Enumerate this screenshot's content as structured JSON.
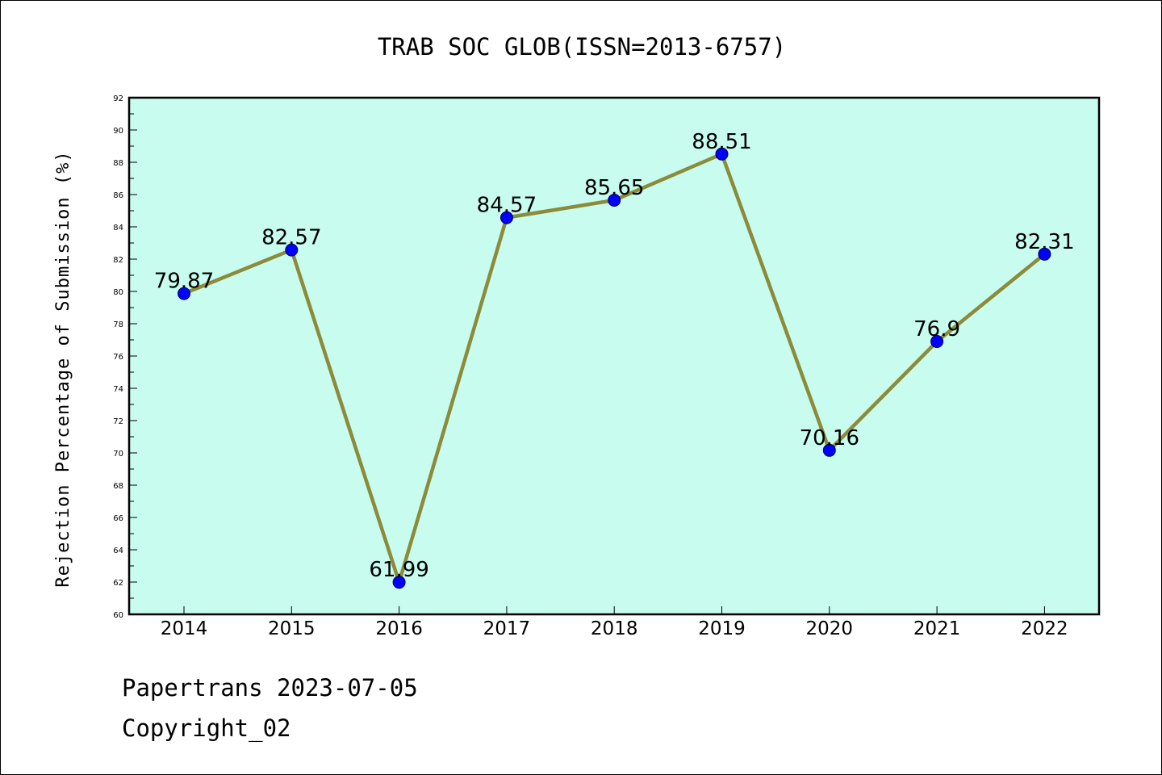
{
  "chart_data": {
    "type": "line",
    "title": "TRAB SOC GLOB(ISSN=2013-6757)",
    "ylabel": "Rejection Percentage of Submission (%)",
    "xlabel": "",
    "categories": [
      "2014",
      "2015",
      "2016",
      "2017",
      "2018",
      "2019",
      "2020",
      "2021",
      "2022"
    ],
    "values": [
      79.87,
      82.57,
      61.99,
      84.57,
      85.65,
      88.51,
      70.16,
      76.9,
      82.31
    ],
    "data_labels": [
      "79.87",
      "82.57",
      "61.99",
      "84.57",
      "85.65",
      "88.51",
      "70.16",
      "76.9",
      "82.31"
    ],
    "ylim": [
      60,
      92
    ],
    "yticks": [
      "60",
      "62",
      "64",
      "66",
      "68",
      "70",
      "72",
      "74",
      "76",
      "78",
      "80",
      "82",
      "84",
      "86",
      "88",
      "90",
      "92"
    ],
    "grid": false,
    "legend": "none",
    "colors": {
      "plot_background": "#c8fcee",
      "line": "#8b8b3a",
      "marker": "#0000ff",
      "marker_edge": "#00004a"
    }
  },
  "footer": {
    "line1": "Papertrans 2023-07-05",
    "line2": "Copyright_02"
  }
}
